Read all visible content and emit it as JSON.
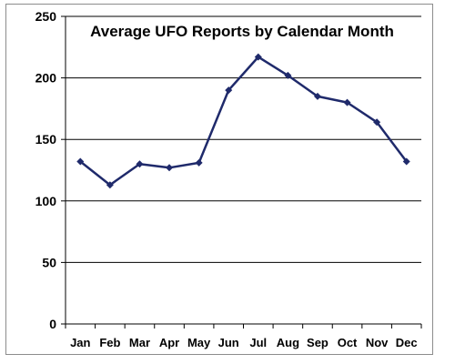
{
  "chart_data": {
    "type": "line",
    "title": "Average UFO Reports by Calendar Month",
    "xlabel": "",
    "ylabel": "",
    "categories": [
      "Jan",
      "Feb",
      "Mar",
      "Apr",
      "May",
      "Jun",
      "Jul",
      "Aug",
      "Sep",
      "Oct",
      "Nov",
      "Dec"
    ],
    "series": [
      {
        "values": [
          132,
          113,
          130,
          127,
          131,
          190,
          217,
          202,
          185,
          180,
          164,
          132
        ],
        "color": "#1f2a6b"
      }
    ],
    "ylim": [
      0,
      250
    ],
    "yticks": [
      0,
      50,
      100,
      150,
      200,
      250
    ],
    "grid": true,
    "legend": "none",
    "marker": "diamond"
  }
}
